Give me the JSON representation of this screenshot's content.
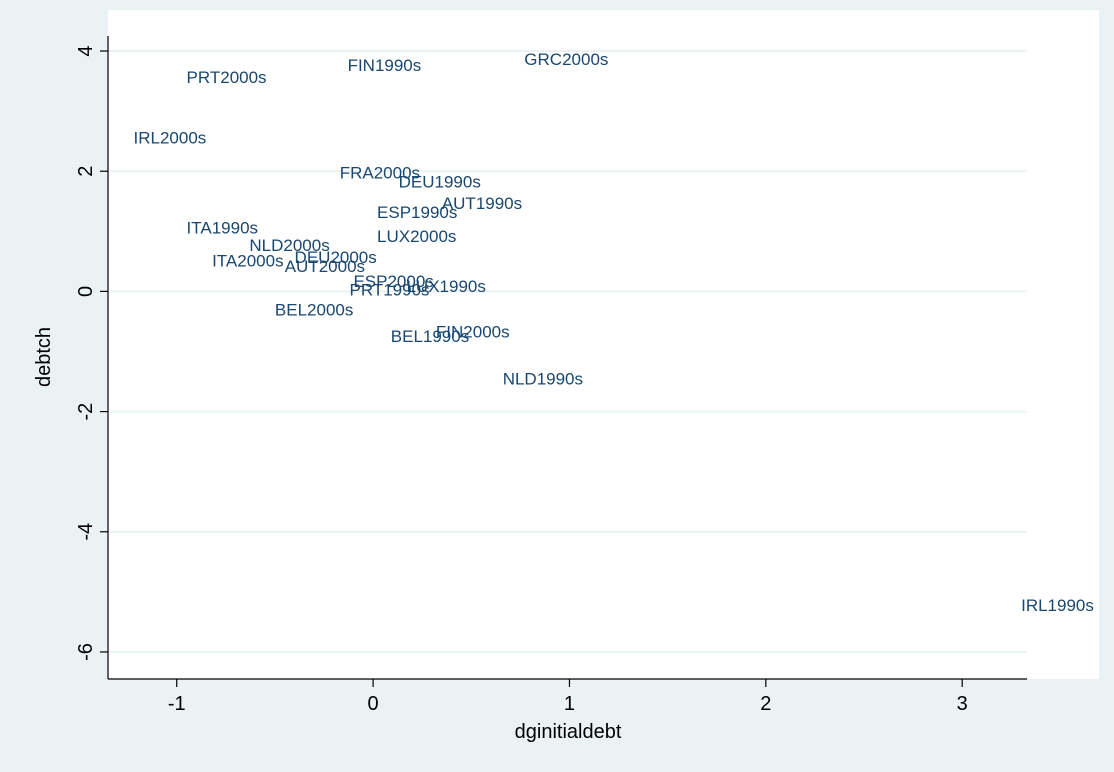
{
  "colors": {
    "page_background": "#eaf2f3",
    "plot_background": "#ffffff",
    "grid": "#eaf2f3",
    "marker_label": "#1a476f",
    "axis": "#000000"
  },
  "chart_data": {
    "type": "scatter",
    "title": "",
    "xlabel": "dginitialdebt",
    "ylabel": "debtch",
    "xlim": [
      -1.35,
      3.33
    ],
    "ylim": [
      -6.45,
      4.25
    ],
    "grid": true,
    "marker_style": "label-only",
    "x_ticks": [
      -1,
      0,
      1,
      2,
      3
    ],
    "y_ticks": [
      -6,
      -4,
      -2,
      0,
      2,
      4
    ],
    "x_tick_labels": [
      "-1",
      "0",
      "1",
      "2",
      "3"
    ],
    "y_tick_labels": [
      "-6",
      "-4",
      "-2",
      "0",
      "2",
      "4"
    ],
    "points": [
      {
        "label": "PRT2000s",
        "x": -0.95,
        "y": 3.57
      },
      {
        "label": "FIN1990s",
        "x": -0.13,
        "y": 3.77
      },
      {
        "label": "GRC2000s",
        "x": 0.77,
        "y": 3.87
      },
      {
        "label": "IRL2000s",
        "x": -1.22,
        "y": 2.56
      },
      {
        "label": "FRA2000s",
        "x": -0.17,
        "y": 1.98
      },
      {
        "label": "DEU1990s",
        "x": 0.13,
        "y": 1.83
      },
      {
        "label": "AUT1990s",
        "x": 0.35,
        "y": 1.47
      },
      {
        "label": "ESP1990s",
        "x": 0.02,
        "y": 1.32
      },
      {
        "label": "ITA1990s",
        "x": -0.95,
        "y": 1.06
      },
      {
        "label": "LUX2000s",
        "x": 0.02,
        "y": 0.92
      },
      {
        "label": "NLD2000s",
        "x": -0.63,
        "y": 0.77
      },
      {
        "label": "DEU2000s",
        "x": -0.4,
        "y": 0.57
      },
      {
        "label": "ITA2000s",
        "x": -0.82,
        "y": 0.51
      },
      {
        "label": "AUT2000s",
        "x": -0.45,
        "y": 0.42
      },
      {
        "label": "ESP2000s",
        "x": -0.1,
        "y": 0.17
      },
      {
        "label": "LUX1990s",
        "x": 0.17,
        "y": 0.09
      },
      {
        "label": "PRT1990s",
        "x": -0.12,
        "y": 0.03
      },
      {
        "label": "BEL2000s",
        "x": -0.5,
        "y": -0.3
      },
      {
        "label": "FIN2000s",
        "x": 0.32,
        "y": -0.67
      },
      {
        "label": "BEL1990s",
        "x": 0.09,
        "y": -0.74
      },
      {
        "label": "NLD1990s",
        "x": 0.66,
        "y": -1.45
      },
      {
        "label": "IRL1990s",
        "x": 3.3,
        "y": -5.22
      }
    ]
  }
}
